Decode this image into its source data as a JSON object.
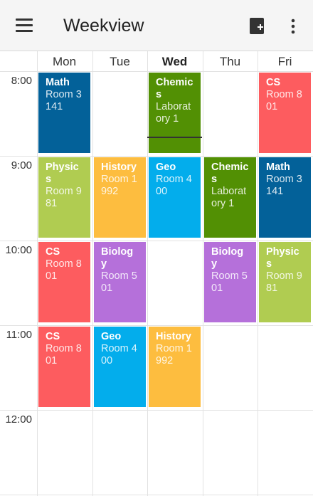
{
  "app": {
    "title": "Weekview"
  },
  "icons": {
    "menu": "menu-icon",
    "add": "add-event-icon",
    "more": "more-vert-icon"
  },
  "days": [
    "Mon",
    "Tue",
    "Wed",
    "Thu",
    "Fri"
  ],
  "today": "Wed",
  "hours": [
    "8:00",
    "9:00",
    "10:00",
    "11:00",
    "12:00"
  ],
  "colors": {
    "math": "#036199",
    "physics": "#b0cc51",
    "cs": "#fd5c5f",
    "history": "#fdbd3f",
    "geo": "#03adec",
    "chemistry": "#529004",
    "biology": "#b570da"
  },
  "events": [
    {
      "day": "Mon",
      "hour": "8:00",
      "title": "Math",
      "room": "Room 3141",
      "color": "#036199"
    },
    {
      "day": "Wed",
      "hour": "8:00",
      "title": "Chemics",
      "room": "Laboratory 1",
      "color": "#529004"
    },
    {
      "day": "Fri",
      "hour": "8:00",
      "title": "CS",
      "room": "Room 801",
      "color": "#fd5c5f"
    },
    {
      "day": "Mon",
      "hour": "9:00",
      "title": "Physics",
      "room": "Room 981",
      "color": "#b0cc51"
    },
    {
      "day": "Tue",
      "hour": "9:00",
      "title": "History",
      "room": "Room 1992",
      "color": "#fdbd3f"
    },
    {
      "day": "Wed",
      "hour": "9:00",
      "title": "Geo",
      "room": "Room 400",
      "color": "#03adec"
    },
    {
      "day": "Thu",
      "hour": "9:00",
      "title": "Chemics",
      "room": "Laboratory 1",
      "color": "#529004"
    },
    {
      "day": "Fri",
      "hour": "9:00",
      "title": "Math",
      "room": "Room 3141",
      "color": "#036199"
    },
    {
      "day": "Mon",
      "hour": "10:00",
      "title": "CS",
      "room": "Room 801",
      "color": "#fd5c5f"
    },
    {
      "day": "Tue",
      "hour": "10:00",
      "title": "Biology",
      "room": "Room 501",
      "color": "#b570da"
    },
    {
      "day": "Thu",
      "hour": "10:00",
      "title": "Biology",
      "room": "Room 501",
      "color": "#b570da"
    },
    {
      "day": "Fri",
      "hour": "10:00",
      "title": "Physics",
      "room": "Room 981",
      "color": "#b0cc51"
    },
    {
      "day": "Mon",
      "hour": "11:00",
      "title": "CS",
      "room": "Room 801",
      "color": "#fd5c5f"
    },
    {
      "day": "Tue",
      "hour": "11:00",
      "title": "Geo",
      "room": "Room 400",
      "color": "#03adec"
    },
    {
      "day": "Wed",
      "hour": "11:00",
      "title": "History",
      "room": "Room 1992",
      "color": "#fdbd3f"
    }
  ]
}
